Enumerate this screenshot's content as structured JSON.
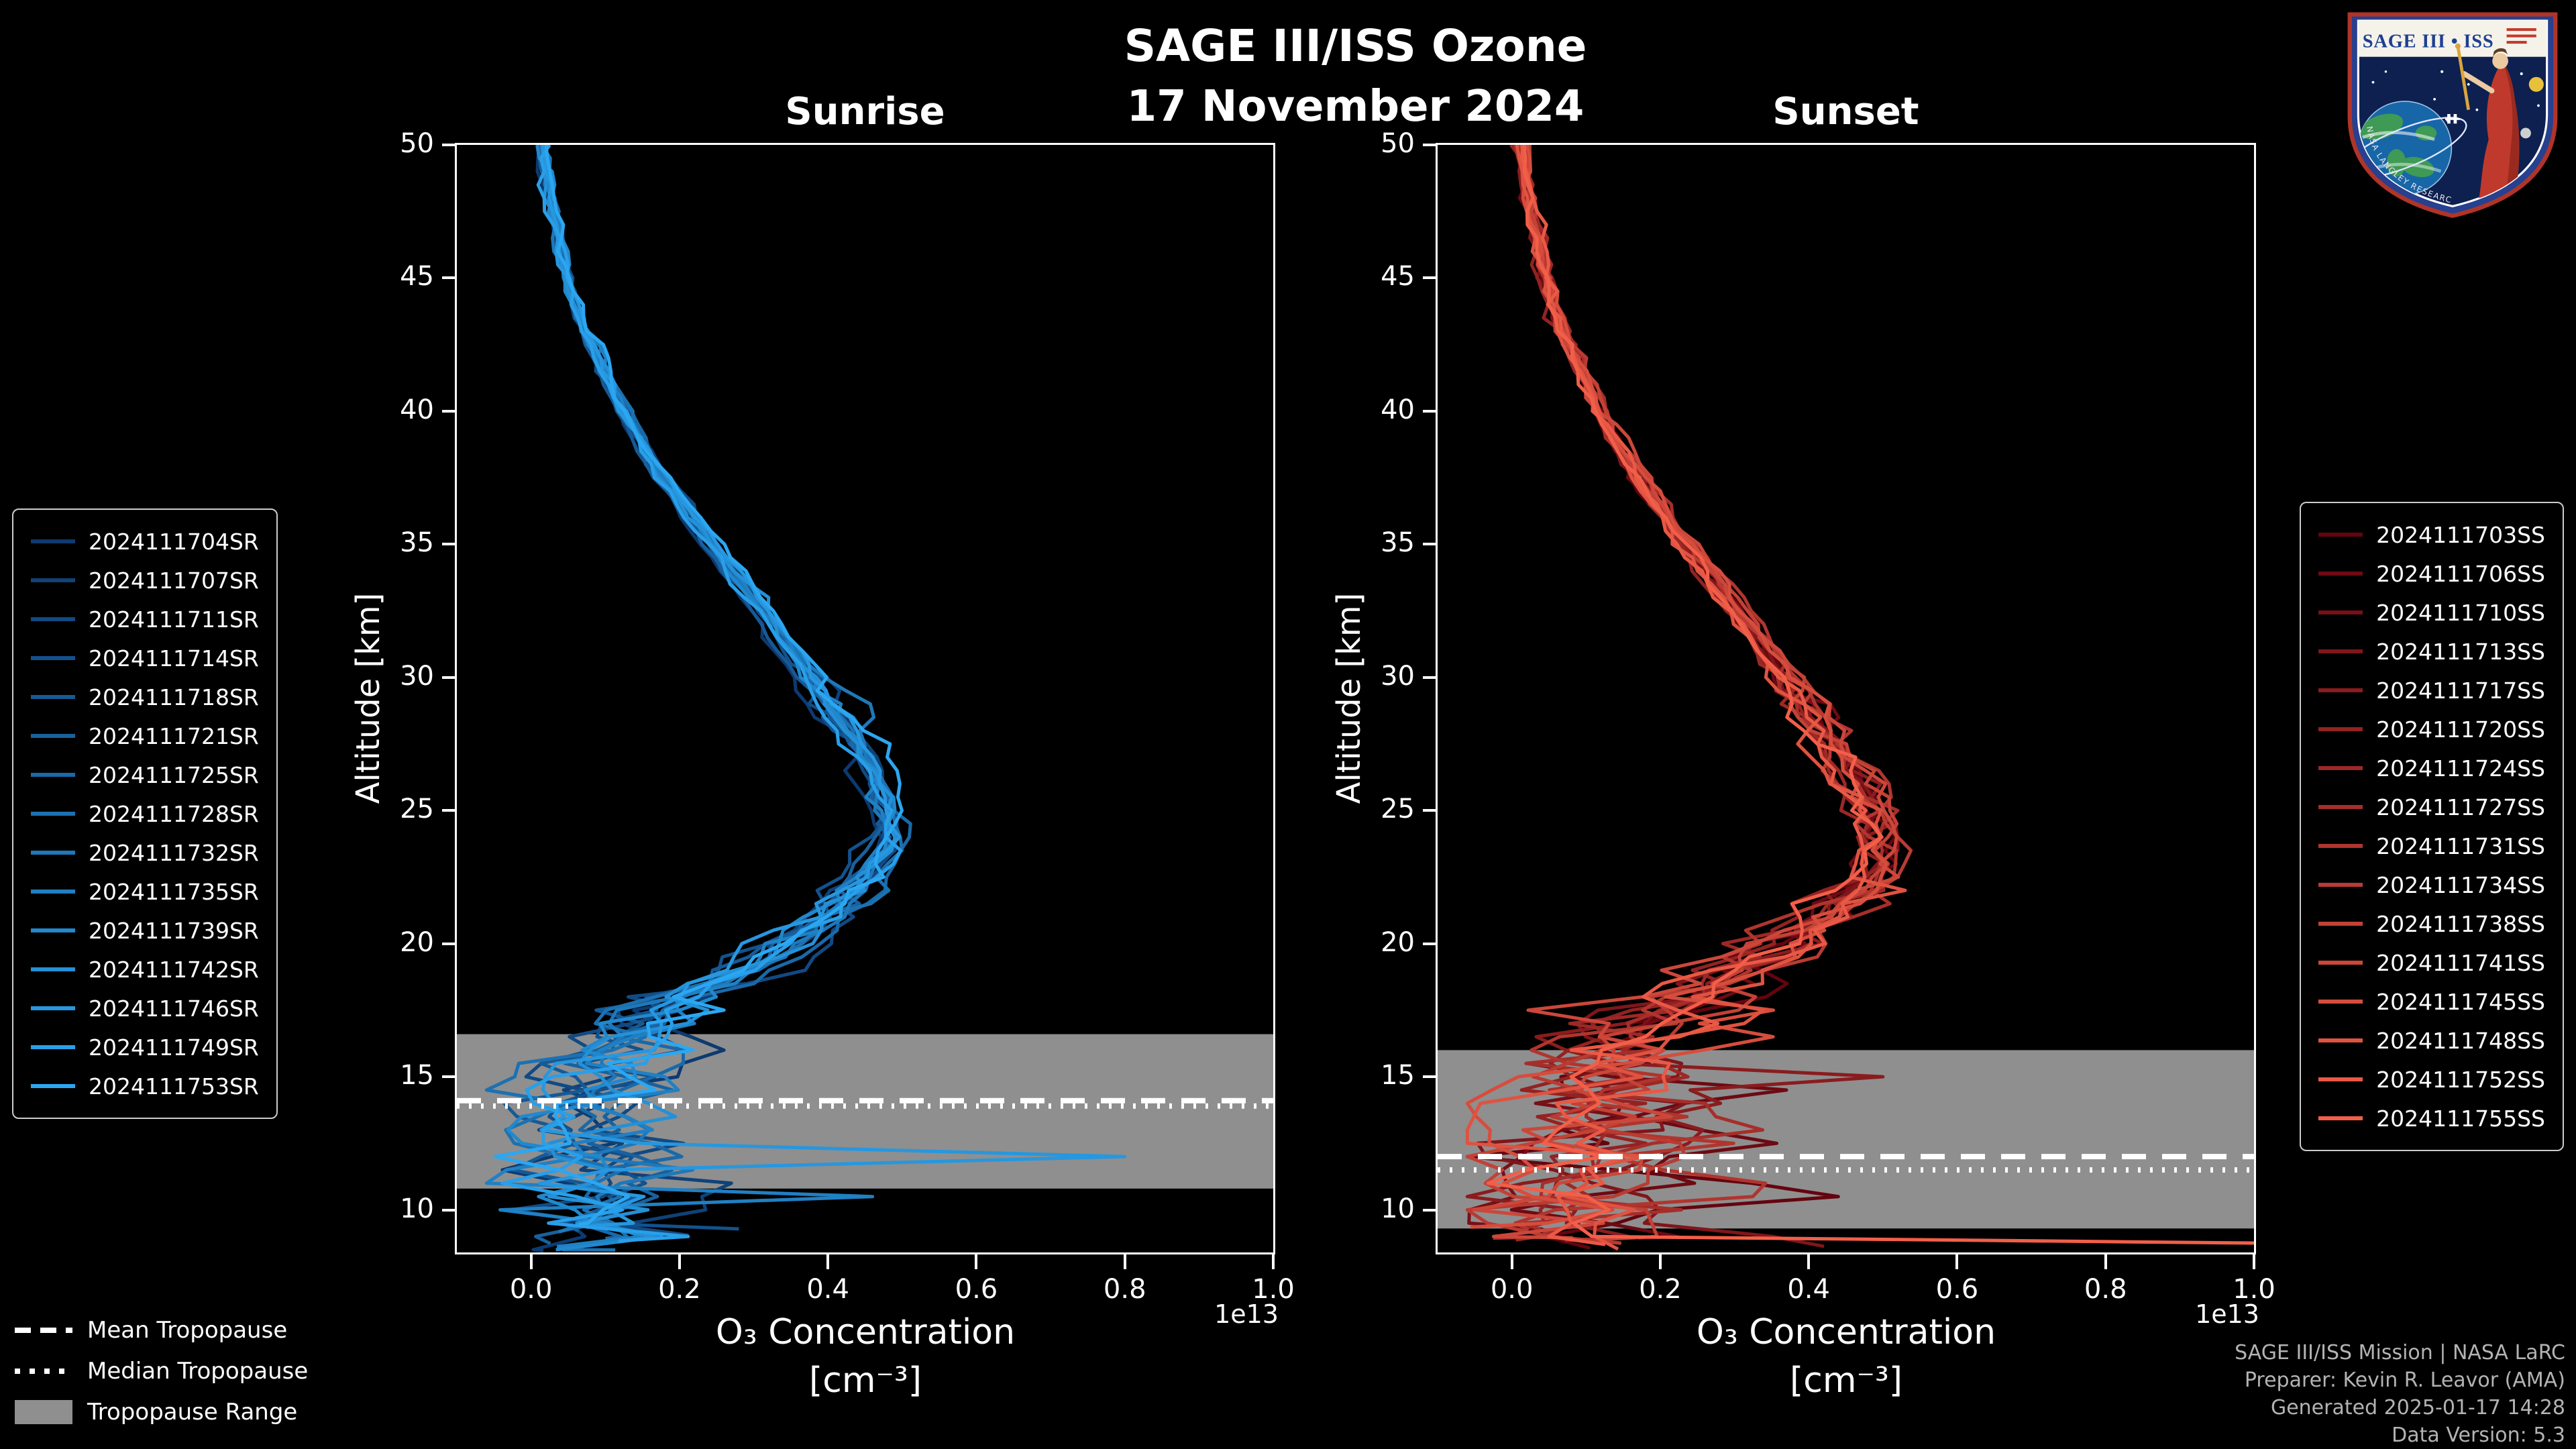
{
  "header": {
    "title": "SAGE III/ISS Ozone",
    "date": "17 November 2024"
  },
  "logo": {
    "title": "SAGE III • ISS",
    "footer": "NASA LANGLEY RESEARCH CENTER"
  },
  "credits": {
    "line1": "SAGE III/ISS Mission | NASA LaRC",
    "line2": "Preparer: Kevin R. Leavor (AMA)",
    "line3": "Generated 2025-01-17 14:28",
    "line4": "Data Version: 5.3"
  },
  "tropopause_legend": [
    {
      "style": "dashed",
      "label": "Mean Tropopause"
    },
    {
      "style": "dotted",
      "label": "Median Tropopause"
    },
    {
      "style": "band",
      "label": "Tropopause Range"
    }
  ],
  "axes": {
    "xlabel_line1": "O₃ Concentration",
    "xlabel_line2": "[cm⁻³]",
    "ylabel": "Altitude [km]",
    "offset_text": "1e13",
    "x_ticks": [
      0.0,
      0.2,
      0.4,
      0.6,
      0.8,
      1.0
    ],
    "x_tick_labels": [
      "0.0",
      "0.2",
      "0.4",
      "0.6",
      "0.8",
      "1.0"
    ],
    "y_ticks": [
      10,
      15,
      20,
      25,
      30,
      35,
      40,
      45,
      50
    ],
    "xlim": [
      -0.1,
      1.0
    ],
    "ylim": [
      8.4,
      50
    ]
  },
  "colors": {
    "background": "#000000",
    "text": "#ffffff",
    "band": "#8f8f8f",
    "tropopause_line": "#ffffff",
    "credits_text": "#b3b3b3",
    "legend_border": "#cccccc"
  },
  "chart_data": [
    {
      "type": "line",
      "title": "Sunrise",
      "xlabel": "O₃ Concentration [cm⁻³]",
      "ylabel": "Altitude [km]",
      "x_scale_factor": "1e13",
      "xlim": [
        -0.1,
        1.0
      ],
      "ylim": [
        8.4,
        50
      ],
      "legend_position": "outside-left",
      "tropopause": {
        "mean_km": 14.1,
        "median_km": 13.9,
        "range_km": [
          10.8,
          16.6
        ]
      },
      "peak": {
        "altitude_km": 24.5,
        "concentration_1e13": 0.49
      },
      "noise_scale": 1.0,
      "series_ids": [
        "2024111704SR",
        "2024111707SR",
        "2024111711SR",
        "2024111714SR",
        "2024111718SR",
        "2024111721SR",
        "2024111725SR",
        "2024111728SR",
        "2024111732SR",
        "2024111735SR",
        "2024111739SR",
        "2024111742SR",
        "2024111746SR",
        "2024111749SR",
        "2024111753SR"
      ],
      "series_colors": [
        "#0d3a70",
        "#0f4279",
        "#114a83",
        "#13518c",
        "#165995",
        "#18619e",
        "#1a69a8",
        "#1c71b1",
        "#1e78ba",
        "#2080c4",
        "#2288cd",
        "#2590d6",
        "#2797df",
        "#299fe9",
        "#2ba7f2"
      ],
      "base_profile": {
        "altitude_km": [
          8.5,
          9,
          10,
          11,
          12,
          13,
          14,
          15,
          16,
          17,
          18,
          19,
          20,
          21,
          22,
          23,
          24,
          24.5,
          25,
          26,
          27,
          28,
          29,
          30,
          32,
          34,
          36,
          38,
          40,
          42,
          44,
          46,
          48,
          50
        ],
        "concentration_1e13": [
          0.11,
          0.1,
          0.09,
          0.08,
          0.09,
          0.085,
          0.08,
          0.09,
          0.115,
          0.16,
          0.215,
          0.28,
          0.345,
          0.4,
          0.445,
          0.47,
          0.485,
          0.49,
          0.485,
          0.47,
          0.45,
          0.425,
          0.4,
          0.375,
          0.325,
          0.27,
          0.215,
          0.165,
          0.125,
          0.09,
          0.06,
          0.04,
          0.025,
          0.015
        ]
      },
      "anomalies": [
        {
          "series": 12,
          "altitude_km": 12.0,
          "concentration_1e13": 0.8
        },
        {
          "series": 9,
          "altitude_km": 10.5,
          "concentration_1e13": 0.46
        },
        {
          "series": 3,
          "altitude_km": 9.0,
          "concentration_1e13": 0.28
        }
      ]
    },
    {
      "type": "line",
      "title": "Sunset",
      "xlabel": "O₃ Concentration [cm⁻³]",
      "ylabel": "Altitude [km]",
      "x_scale_factor": "1e13",
      "xlim": [
        -0.1,
        1.0
      ],
      "ylim": [
        8.4,
        50
      ],
      "legend_position": "outside-right",
      "tropopause": {
        "mean_km": 12.0,
        "median_km": 11.5,
        "range_km": [
          9.3,
          16.0
        ]
      },
      "peak": {
        "altitude_km": 24.0,
        "concentration_1e13": 0.495
      },
      "noise_scale": 1.35,
      "series_ids": [
        "2024111703SS",
        "2024111706SS",
        "2024111710SS",
        "2024111713SS",
        "2024111717SS",
        "2024111720SS",
        "2024111724SS",
        "2024111727SS",
        "2024111731SS",
        "2024111734SS",
        "2024111738SS",
        "2024111741SS",
        "2024111745SS",
        "2024111748SS",
        "2024111752SS",
        "2024111755SS"
      ],
      "series_colors": [
        "#64040f",
        "#6d0a13",
        "#771017",
        "#80161b",
        "#8a1c1e",
        "#932222",
        "#9d2826",
        "#a62e2a",
        "#b0352e",
        "#b93b32",
        "#c34136",
        "#cc473a",
        "#d64d3d",
        "#df5341",
        "#e95945",
        "#f25f49"
      ],
      "base_profile": {
        "altitude_km": [
          8.5,
          9,
          10,
          11,
          12,
          13,
          14,
          15,
          16,
          17,
          18,
          19,
          20,
          21,
          22,
          23,
          24,
          24.5,
          25,
          26,
          27,
          28,
          29,
          30,
          32,
          34,
          36,
          38,
          40,
          42,
          44,
          46,
          48,
          50
        ],
        "concentration_1e13": [
          0.1,
          0.09,
          0.085,
          0.08,
          0.085,
          0.09,
          0.095,
          0.1,
          0.13,
          0.175,
          0.23,
          0.3,
          0.365,
          0.42,
          0.465,
          0.49,
          0.495,
          0.492,
          0.485,
          0.465,
          0.44,
          0.415,
          0.39,
          0.365,
          0.315,
          0.262,
          0.208,
          0.158,
          0.118,
          0.086,
          0.057,
          0.037,
          0.023,
          0.014
        ]
      },
      "anomalies": [
        {
          "series": 15,
          "altitude_km": 8.6,
          "concentration_1e13": 1.06
        },
        {
          "series": 13,
          "altitude_km": 22.0,
          "concentration_1e13": 0.53
        },
        {
          "series": 4,
          "altitude_km": 15.2,
          "concentration_1e13": 0.5
        },
        {
          "series": 1,
          "altitude_km": 14.5,
          "concentration_1e13": 0.37
        }
      ]
    }
  ]
}
